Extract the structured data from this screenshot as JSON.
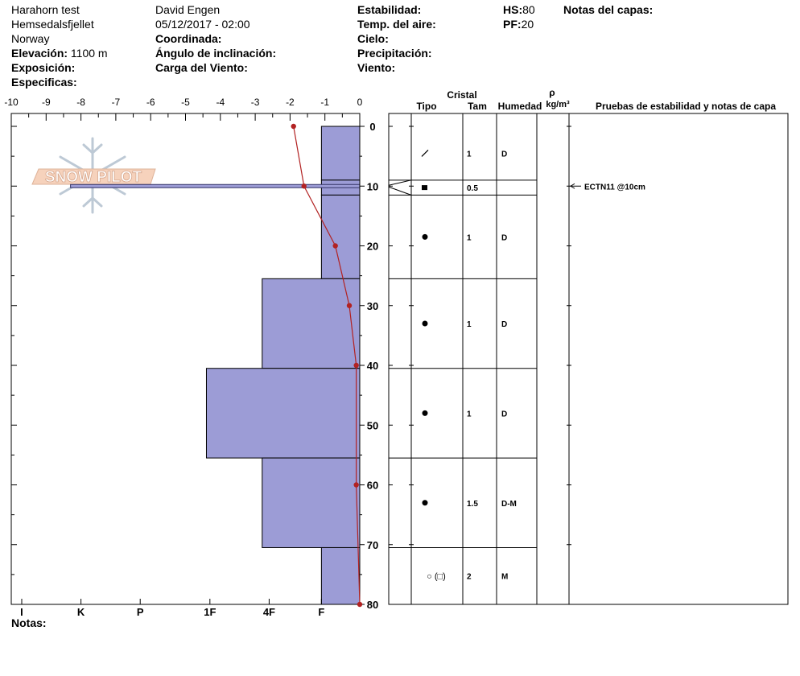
{
  "header": {
    "site": "Harahorn test",
    "area": "Hemsedalsfjellet",
    "country": "Norway",
    "elevation_label": "Elevación:",
    "elevation_value": "1100 m",
    "exposure_label": "Exposición:",
    "specifics_label": "Especificas:",
    "observer": "David Engen",
    "datetime": "05/12/2017 - 02:00",
    "coord_label": "Coordinada:",
    "slope_label": "Ángulo de inclinación:",
    "wind_load_label": "Carga del Viento:",
    "stability_label": "Estabilidad:",
    "air_temp_label": "Temp. del aire:",
    "sky_label": "Cielo:",
    "precip_label": "Precipitación:",
    "wind_label": "Viento:",
    "hs_label": "HS:",
    "hs_value": "80",
    "pf_label": "PF:",
    "pf_value": "20",
    "layer_notes_label": "Notas del capas:"
  },
  "notes_label": "Notas:",
  "logo_text": "SNOW PILOT",
  "colors": {
    "hardness_fill": "#9c9cd6",
    "hardness_edge": "#333366",
    "temp_line": "#b22222"
  },
  "chart_data": {
    "type": "snow_profile",
    "temperature_axis": {
      "ticks": [
        -10,
        -9,
        -8,
        -7,
        -6,
        -5,
        -4,
        -3,
        -2,
        -1,
        0
      ],
      "range": [
        -10,
        0
      ]
    },
    "depth_axis": {
      "ticks": [
        0,
        10,
        20,
        30,
        40,
        50,
        60,
        70,
        80
      ],
      "range": [
        0,
        80
      ]
    },
    "hardness_axis": {
      "labels": [
        "I",
        "K",
        "P",
        "1F",
        "4F",
        "F"
      ],
      "positions": [
        -9.7,
        -8,
        -6.3,
        -4.3,
        -2.6,
        -1.1
      ]
    },
    "temperature_profile": [
      {
        "depth": 0,
        "temp": -1.9
      },
      {
        "depth": 10,
        "temp": -1.6
      },
      {
        "depth": 20,
        "temp": -0.7
      },
      {
        "depth": 30,
        "temp": -0.3
      },
      {
        "depth": 40,
        "temp": -0.1
      },
      {
        "depth": 60,
        "temp": -0.1
      },
      {
        "depth": 80,
        "temp": 0
      }
    ],
    "hardness_layers": [
      {
        "top": 0,
        "bottom": 9,
        "hardness": -1.1
      },
      {
        "top": 9,
        "bottom": 11.5,
        "hardness": -1.1
      },
      {
        "top": 11.5,
        "bottom": 25.5,
        "hardness": -1.1
      },
      {
        "top": 25.5,
        "bottom": 40.5,
        "hardness": -2.8
      },
      {
        "top": 40.5,
        "bottom": 55.5,
        "hardness": -4.4
      },
      {
        "top": 55.5,
        "bottom": 70.5,
        "hardness": -2.8
      },
      {
        "top": 70.5,
        "bottom": 80,
        "hardness": -1.1
      }
    ],
    "weak_layer": {
      "depth": 10,
      "hardness": -8.3
    },
    "columns": {
      "crystal": "Cristal",
      "type": "Tipo",
      "size": "Tam",
      "moisture": "Humedad",
      "rho": "ρ",
      "rho_units": "kg/m³",
      "tests": "Pruebas de estabilidad y notas de capa"
    },
    "layers": [
      {
        "top": 0,
        "bottom": 9,
        "type_symbol": "/",
        "size": "1",
        "moisture": "D"
      },
      {
        "top": 9,
        "bottom": 11.5,
        "type_symbol": "■",
        "size": "0.5",
        "moisture": ""
      },
      {
        "top": 11.5,
        "bottom": 25.5,
        "type_symbol": "●",
        "size": "1",
        "moisture": "D"
      },
      {
        "top": 25.5,
        "bottom": 40.5,
        "type_symbol": "●",
        "size": "1",
        "moisture": "D"
      },
      {
        "top": 40.5,
        "bottom": 55.5,
        "type_symbol": "●",
        "size": "1",
        "moisture": "D"
      },
      {
        "top": 55.5,
        "bottom": 70.5,
        "type_symbol": "●",
        "size": "1.5",
        "moisture": "D-M"
      },
      {
        "top": 70.5,
        "bottom": 80,
        "type_symbol": "○ (□)",
        "size": "2",
        "moisture": "M"
      }
    ],
    "stability_tests": [
      {
        "depth": 10,
        "text": "ECTN11 @10cm"
      }
    ]
  }
}
